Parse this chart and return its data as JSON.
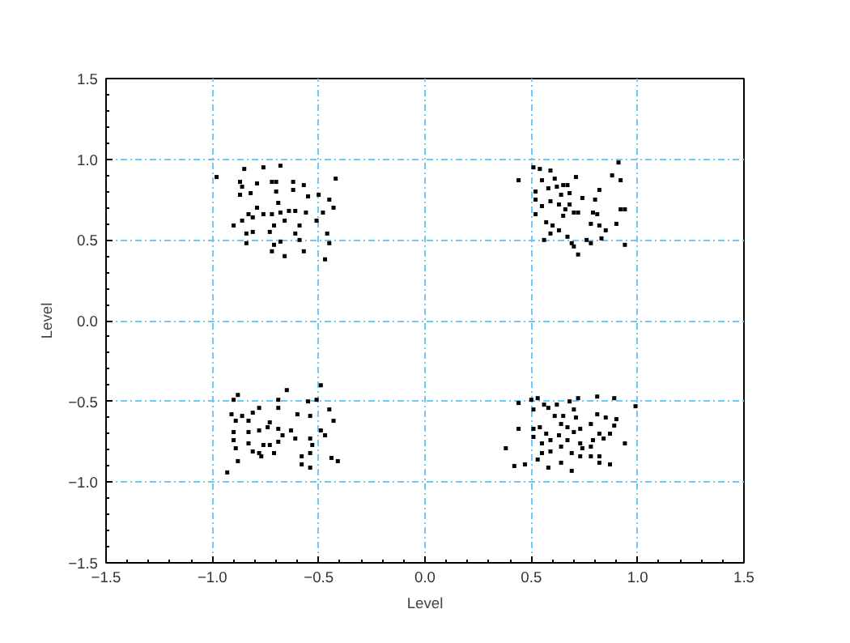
{
  "chart_data": {
    "type": "scatter",
    "xlabel": "Level",
    "ylabel": "Level",
    "xlim": [
      -1.5,
      1.5
    ],
    "ylim": [
      -1.5,
      1.5
    ],
    "xticks": [
      {
        "value": -1.5,
        "label": "−1.5"
      },
      {
        "value": -1.0,
        "label": "−1.0"
      },
      {
        "value": -0.5,
        "label": "−0.5"
      },
      {
        "value": 0,
        "label": "0.0"
      },
      {
        "value": 0.5,
        "label": "0.5"
      },
      {
        "value": 1.0,
        "label": "1.0"
      },
      {
        "value": 1.5,
        "label": "1.5"
      }
    ],
    "yticks": [
      {
        "value": -1.5,
        "label": "−1.5"
      },
      {
        "value": -1.0,
        "label": "−1.0"
      },
      {
        "value": -0.5,
        "label": "−0.5"
      },
      {
        "value": 0,
        "label": "0.0"
      },
      {
        "value": 0.5,
        "label": "0.5"
      },
      {
        "value": 1.0,
        "label": "1.0"
      },
      {
        "value": 1.5,
        "label": "1.5"
      }
    ],
    "grid": true,
    "marker": "square",
    "series": [
      {
        "color": "#000000",
        "x": [
          -0.98,
          -0.85,
          -0.76,
          -0.68,
          -0.72,
          -0.7,
          -0.87,
          -0.79,
          -0.86,
          -0.62,
          -0.57,
          -0.42,
          -0.82,
          -0.7,
          -0.62,
          -0.55,
          -0.5,
          -0.45,
          -0.87,
          -0.79,
          -0.69,
          -0.64,
          -0.61,
          -0.56,
          -0.48,
          -0.43,
          -0.83,
          -0.76,
          -0.72,
          -0.68,
          -0.86,
          -0.81,
          -0.9,
          -0.71,
          -0.66,
          -0.59,
          -0.51,
          -0.84,
          -0.81,
          -0.73,
          -0.61,
          -0.46,
          -0.84,
          -0.71,
          -0.68,
          -0.59,
          -0.45,
          -0.47,
          -0.72,
          -0.66,
          -0.57,
          0.44,
          0.51,
          0.54,
          0.59,
          0.71,
          0.91,
          0.88,
          0.92,
          0.55,
          0.61,
          0.65,
          0.67,
          0.52,
          0.58,
          0.62,
          0.64,
          0.68,
          0.82,
          0.59,
          0.52,
          0.74,
          0.8,
          0.68,
          0.63,
          0.55,
          0.66,
          0.72,
          0.79,
          0.81,
          0.92,
          0.94,
          0.52,
          0.65,
          0.7,
          0.57,
          0.6,
          0.63,
          0.78,
          0.82,
          0.85,
          0.9,
          0.59,
          0.67,
          0.76,
          0.78,
          0.83,
          0.94,
          0.56,
          0.69,
          0.7,
          0.72,
          -0.65,
          -0.49,
          -0.88,
          -0.9,
          -0.69,
          -0.55,
          -0.51,
          -0.45,
          -0.69,
          -0.78,
          -0.81,
          -0.91,
          -0.86,
          -0.6,
          -0.54,
          -0.43,
          -0.89,
          -0.83,
          -0.73,
          -0.74,
          -0.78,
          -0.69,
          -0.63,
          -0.49,
          -0.9,
          -0.83,
          -0.67,
          -0.61,
          -0.54,
          -0.47,
          -0.9,
          -0.83,
          -0.76,
          -0.73,
          -0.69,
          -0.53,
          -0.89,
          -0.81,
          -0.78,
          -0.71,
          -0.54,
          -0.58,
          -0.77,
          -0.44,
          -0.41,
          -0.88,
          -0.58,
          -0.54,
          -0.93,
          0.53,
          0.5,
          0.44,
          0.56,
          0.62,
          0.68,
          0.72,
          0.81,
          0.89,
          0.99,
          0.51,
          0.58,
          0.7,
          0.61,
          0.65,
          0.71,
          0.81,
          0.85,
          0.9,
          0.44,
          0.51,
          0.54,
          0.64,
          0.67,
          0.73,
          0.78,
          0.89,
          0.57,
          0.63,
          0.7,
          0.82,
          0.87,
          0.51,
          0.59,
          0.67,
          0.73,
          0.79,
          0.84,
          0.94,
          0.55,
          0.64,
          0.74,
          0.78,
          0.38,
          0.55,
          0.59,
          0.69,
          0.73,
          0.78,
          0.82,
          0.53,
          0.64,
          0.82,
          0.87,
          0.42,
          0.47,
          0.58,
          0.69
        ],
        "values": [
          0.89,
          0.94,
          0.95,
          0.96,
          0.86,
          0.86,
          0.86,
          0.85,
          0.83,
          0.86,
          0.84,
          0.88,
          0.79,
          0.8,
          0.81,
          0.77,
          0.78,
          0.75,
          0.78,
          0.7,
          0.73,
          0.68,
          0.68,
          0.67,
          0.67,
          0.7,
          0.66,
          0.66,
          0.66,
          0.67,
          0.62,
          0.64,
          0.59,
          0.59,
          0.62,
          0.59,
          0.62,
          0.54,
          0.55,
          0.55,
          0.54,
          0.54,
          0.48,
          0.47,
          0.49,
          0.5,
          0.48,
          0.38,
          0.43,
          0.4,
          0.43,
          0.87,
          0.95,
          0.94,
          0.93,
          0.89,
          0.98,
          0.9,
          0.87,
          0.87,
          0.88,
          0.84,
          0.84,
          0.8,
          0.82,
          0.83,
          0.78,
          0.79,
          0.81,
          0.74,
          0.75,
          0.76,
          0.75,
          0.72,
          0.72,
          0.71,
          0.69,
          0.67,
          0.67,
          0.66,
          0.69,
          0.69,
          0.66,
          0.65,
          0.67,
          0.61,
          0.59,
          0.56,
          0.6,
          0.59,
          0.56,
          0.6,
          0.54,
          0.52,
          0.5,
          0.48,
          0.51,
          0.47,
          0.5,
          0.48,
          0.46,
          0.41,
          -0.43,
          -0.4,
          -0.46,
          -0.49,
          -0.49,
          -0.5,
          -0.49,
          -0.55,
          -0.54,
          -0.54,
          -0.57,
          -0.58,
          -0.59,
          -0.58,
          -0.59,
          -0.62,
          -0.62,
          -0.62,
          -0.63,
          -0.66,
          -0.68,
          -0.67,
          -0.68,
          -0.68,
          -0.69,
          -0.69,
          -0.71,
          -0.73,
          -0.73,
          -0.71,
          -0.74,
          -0.76,
          -0.77,
          -0.77,
          -0.75,
          -0.77,
          -0.79,
          -0.81,
          -0.82,
          -0.82,
          -0.82,
          -0.84,
          -0.84,
          -0.85,
          -0.87,
          -0.87,
          -0.89,
          -0.91,
          -0.94,
          -0.48,
          -0.49,
          -0.51,
          -0.52,
          -0.52,
          -0.5,
          -0.48,
          -0.47,
          -0.48,
          -0.53,
          -0.55,
          -0.54,
          -0.55,
          -0.59,
          -0.59,
          -0.6,
          -0.58,
          -0.6,
          -0.61,
          -0.67,
          -0.67,
          -0.66,
          -0.64,
          -0.66,
          -0.67,
          -0.64,
          -0.65,
          -0.7,
          -0.71,
          -0.69,
          -0.7,
          -0.7,
          -0.72,
          -0.74,
          -0.74,
          -0.76,
          -0.74,
          -0.73,
          -0.76,
          -0.76,
          -0.78,
          -0.79,
          -0.78,
          -0.79,
          -0.82,
          -0.81,
          -0.82,
          -0.84,
          -0.84,
          -0.84,
          -0.86,
          -0.88,
          -0.88,
          -0.89,
          -0.9,
          -0.89,
          -0.91,
          -0.93
        ]
      }
    ]
  }
}
